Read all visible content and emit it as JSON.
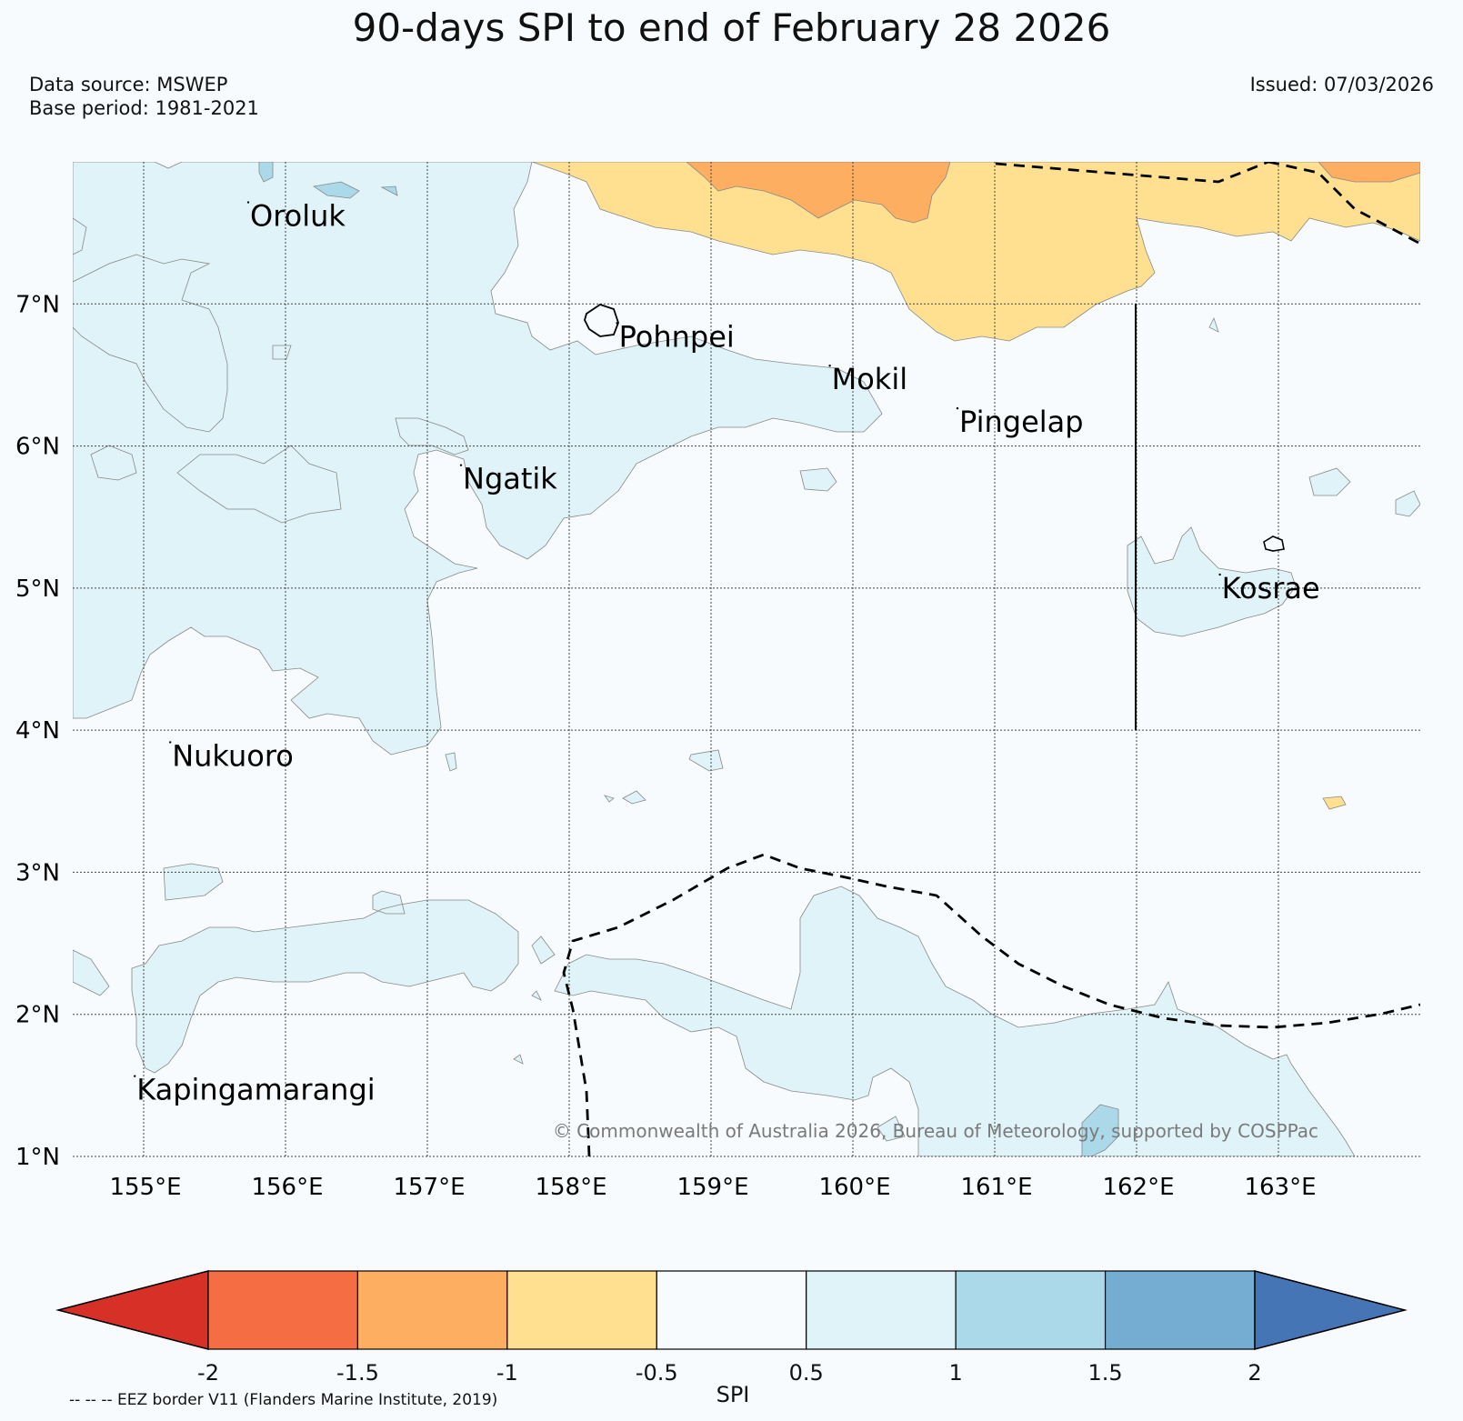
{
  "header": {
    "title": "90-days SPI to end of February 28 2026",
    "data_source": "Data source: MSWEP",
    "base_period": "Base period: 1981-2021",
    "issued": "Issued: 07/03/2026"
  },
  "map": {
    "lon_range": [
      154.5,
      164.0
    ],
    "lat_range": [
      1.0,
      8.0
    ],
    "lon_ticks": [
      "155°E",
      "156°E",
      "157°E",
      "158°E",
      "159°E",
      "160°E",
      "161°E",
      "162°E",
      "163°E"
    ],
    "lat_ticks": [
      "1°N",
      "2°N",
      "3°N",
      "4°N",
      "5°N",
      "6°N",
      "7°N"
    ],
    "places": [
      {
        "name": "Oroluk",
        "lon": 155.75,
        "lat": 7.6
      },
      {
        "name": "Pohnpei",
        "lon": 158.35,
        "lat": 6.75
      },
      {
        "name": "Mokil",
        "lon": 159.85,
        "lat": 6.45
      },
      {
        "name": "Pingelap",
        "lon": 160.75,
        "lat": 6.15
      },
      {
        "name": "Ngatik",
        "lon": 157.25,
        "lat": 5.75
      },
      {
        "name": "Kosrae",
        "lon": 162.6,
        "lat": 4.98
      },
      {
        "name": "Nukuoro",
        "lon": 155.2,
        "lat": 3.8
      },
      {
        "name": "Kapingamarangi",
        "lon": 154.95,
        "lat": 1.45
      }
    ],
    "copyright": "© Commonwealth of Australia 2026, Bureau of Meteorology, supported by COSPPac"
  },
  "colorbar": {
    "title": "SPI",
    "labels": [
      "-2",
      "-1.5",
      "-1",
      "-0.5",
      "0.5",
      "1",
      "1.5",
      "2"
    ],
    "colors": [
      "#d73027",
      "#f46d43",
      "#fdae61",
      "#fee090",
      "#f7fbfd",
      "#e0f3f8",
      "#abd9e9",
      "#74add1",
      "#4575b4"
    ]
  },
  "legend": {
    "eez_note": "-- -- -- EEZ border V11 (Flanders Marine Institute, 2019)"
  }
}
